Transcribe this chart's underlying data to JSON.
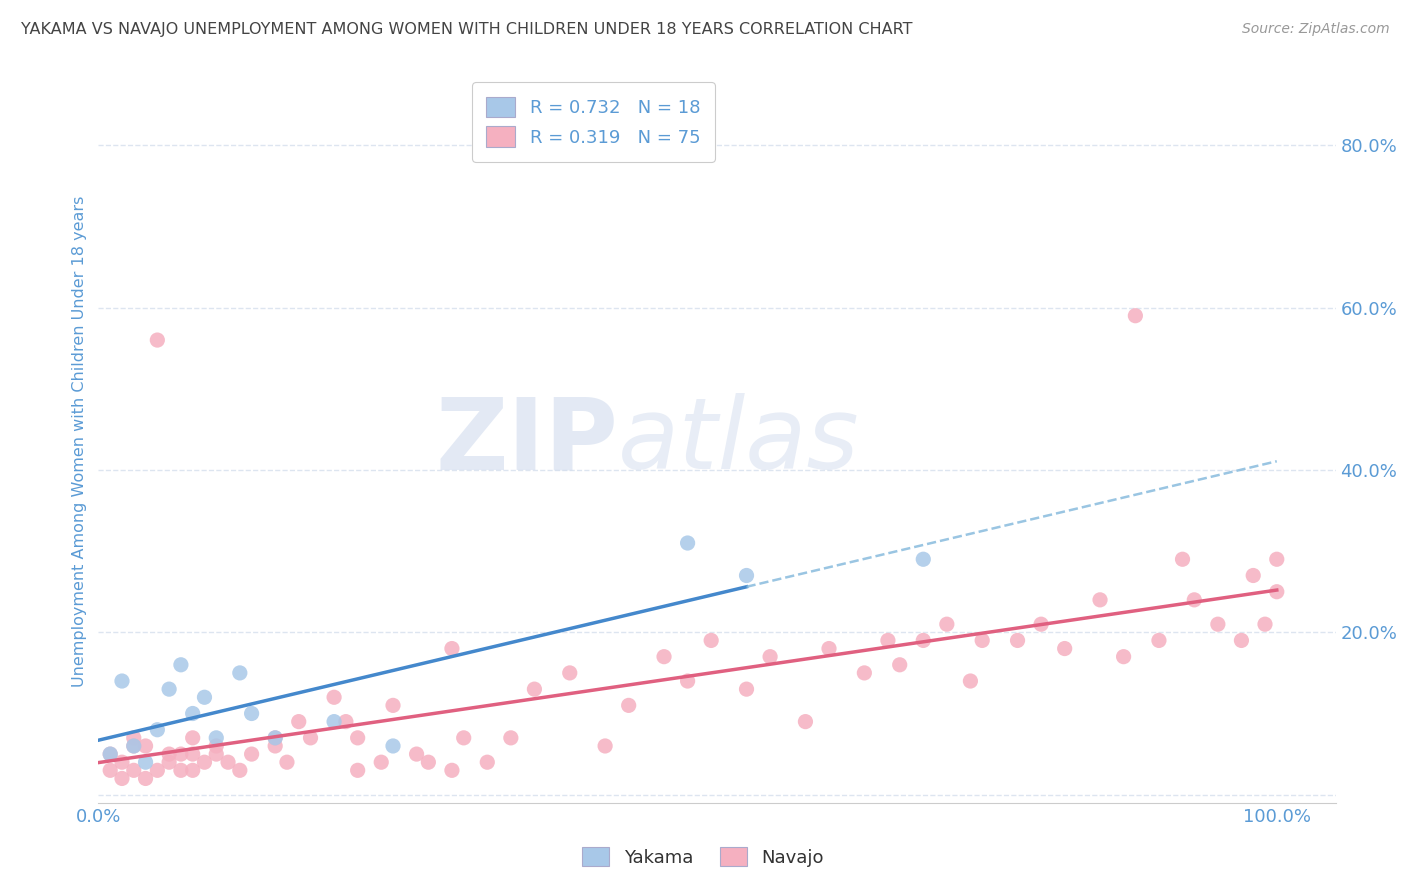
{
  "title": "YAKAMA VS NAVAJO UNEMPLOYMENT AMONG WOMEN WITH CHILDREN UNDER 18 YEARS CORRELATION CHART",
  "source": "Source: ZipAtlas.com",
  "ylabel": "Unemployment Among Women with Children Under 18 years",
  "yakama_r": "0.732",
  "yakama_n": "18",
  "navajo_r": "0.319",
  "navajo_n": "75",
  "yakama_scatter_color": "#a8c8e8",
  "navajo_scatter_color": "#f5b0c0",
  "yakama_line_color": "#4488cc",
  "navajo_line_color": "#e06080",
  "yakama_dash_color": "#88bbdd",
  "axis_color": "#5b9bd5",
  "title_color": "#444444",
  "source_color": "#999999",
  "legend_text_color": "#5b9bd5",
  "grid_color": "#dde5f0",
  "bg_color": "#ffffff",
  "xlim": [
    0.0,
    1.05
  ],
  "ylim": [
    -0.01,
    0.88
  ],
  "ytick_vals": [
    0.0,
    0.2,
    0.4,
    0.6,
    0.8
  ],
  "ytick_labels": [
    "",
    "20.0%",
    "40.0%",
    "60.0%",
    "80.0%"
  ],
  "xtick_vals": [
    0.0,
    1.0
  ],
  "xtick_labels": [
    "0.0%",
    "100.0%"
  ],
  "yakama_x": [
    0.01,
    0.02,
    0.03,
    0.04,
    0.05,
    0.06,
    0.07,
    0.08,
    0.09,
    0.1,
    0.12,
    0.13,
    0.15,
    0.2,
    0.25,
    0.5,
    0.55,
    0.7
  ],
  "yakama_y": [
    0.05,
    0.14,
    0.06,
    0.04,
    0.08,
    0.13,
    0.16,
    0.1,
    0.12,
    0.07,
    0.15,
    0.1,
    0.07,
    0.09,
    0.06,
    0.31,
    0.27,
    0.29
  ],
  "navajo_x": [
    0.01,
    0.01,
    0.02,
    0.02,
    0.03,
    0.03,
    0.03,
    0.04,
    0.04,
    0.05,
    0.05,
    0.06,
    0.06,
    0.07,
    0.07,
    0.08,
    0.08,
    0.08,
    0.09,
    0.1,
    0.1,
    0.11,
    0.12,
    0.13,
    0.15,
    0.15,
    0.16,
    0.17,
    0.18,
    0.2,
    0.21,
    0.22,
    0.22,
    0.24,
    0.25,
    0.27,
    0.28,
    0.3,
    0.3,
    0.31,
    0.33,
    0.35,
    0.37,
    0.4,
    0.43,
    0.45,
    0.48,
    0.5,
    0.52,
    0.55,
    0.57,
    0.6,
    0.62,
    0.65,
    0.67,
    0.68,
    0.7,
    0.72,
    0.74,
    0.75,
    0.78,
    0.8,
    0.82,
    0.85,
    0.87,
    0.88,
    0.9,
    0.92,
    0.93,
    0.95,
    0.97,
    0.98,
    0.99,
    1.0,
    1.0
  ],
  "navajo_y": [
    0.03,
    0.05,
    0.02,
    0.04,
    0.03,
    0.06,
    0.07,
    0.02,
    0.06,
    0.03,
    0.56,
    0.04,
    0.05,
    0.03,
    0.05,
    0.03,
    0.05,
    0.07,
    0.04,
    0.05,
    0.06,
    0.04,
    0.03,
    0.05,
    0.06,
    0.07,
    0.04,
    0.09,
    0.07,
    0.12,
    0.09,
    0.03,
    0.07,
    0.04,
    0.11,
    0.05,
    0.04,
    0.03,
    0.18,
    0.07,
    0.04,
    0.07,
    0.13,
    0.15,
    0.06,
    0.11,
    0.17,
    0.14,
    0.19,
    0.13,
    0.17,
    0.09,
    0.18,
    0.15,
    0.19,
    0.16,
    0.19,
    0.21,
    0.14,
    0.19,
    0.19,
    0.21,
    0.18,
    0.24,
    0.17,
    0.59,
    0.19,
    0.29,
    0.24,
    0.21,
    0.19,
    0.27,
    0.21,
    0.25,
    0.29
  ],
  "watermark_zip_color": "#ccd8ec",
  "watermark_atlas_color": "#ccd8ec",
  "figsize": [
    14.06,
    8.92
  ],
  "dpi": 100
}
